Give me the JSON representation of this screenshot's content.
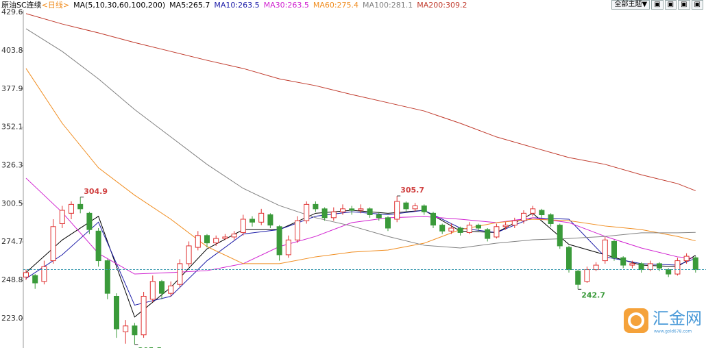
{
  "chart_data": {
    "type": "candlestick",
    "title": "原油SC连续",
    "period": "<日线>",
    "ma_params": "MA(5,10,30,60,100,200)",
    "ylim": [
      203.1,
      437.9
    ],
    "yticks": [
      {
        "value": 223,
        "label": "223.0"
      },
      248.8,
      274.7,
      300.5,
      326.3,
      352.1,
      377.9,
      403.8,
      429.6
    ],
    "up_color": "#e03030",
    "down_color": "#3a9a3a",
    "open": [
      251,
      252,
      248,
      262,
      287,
      294,
      300,
      294,
      282,
      262,
      238,
      214,
      218,
      212,
      236,
      248,
      240,
      246,
      260,
      271,
      279,
      274,
      277,
      278,
      281,
      290,
      288,
      293,
      285,
      266,
      276,
      289,
      300,
      297,
      291,
      295,
      297,
      296,
      297,
      293,
      291,
      290,
      301,
      297,
      299,
      294,
      286,
      282,
      284,
      281,
      286,
      283,
      278,
      285,
      286,
      289,
      294,
      296,
      293,
      286,
      271,
      255,
      248,
      256,
      262,
      275,
      264,
      259,
      260,
      256,
      260,
      256,
      253,
      262,
      264
    ],
    "high": [
      256,
      253,
      262,
      290,
      299,
      302,
      304.9,
      295,
      284,
      263,
      240,
      222,
      220,
      241,
      252,
      249,
      248,
      263,
      275,
      282,
      280,
      279,
      280,
      282,
      293,
      292,
      297,
      294,
      286,
      279,
      292,
      302,
      302,
      298,
      298,
      300,
      299,
      300,
      298,
      295,
      292,
      305.7,
      302,
      301,
      300,
      295,
      287,
      287,
      285,
      288,
      287,
      284,
      287,
      288,
      291,
      296,
      299,
      297,
      294,
      287,
      272,
      256,
      258,
      261,
      278,
      276,
      265,
      262,
      261,
      262,
      261,
      257,
      264,
      267,
      265
    ],
    "low": [
      249,
      243,
      246,
      260,
      284,
      290,
      294,
      280,
      258,
      236,
      210,
      206,
      205.5,
      210,
      234,
      236,
      238,
      244,
      258,
      269,
      271,
      272,
      276,
      276,
      279,
      285,
      286,
      284,
      262,
      264,
      274,
      287,
      295,
      289,
      289,
      293,
      293,
      294,
      291,
      289,
      282,
      288,
      295,
      295,
      293,
      284,
      280,
      280,
      279,
      280,
      282,
      275,
      277,
      283,
      284,
      287,
      292,
      291,
      285,
      270,
      254,
      242.7,
      247,
      255,
      260,
      262,
      257,
      257,
      254,
      255,
      255,
      251,
      252,
      260,
      254
    ],
    "close": [
      254,
      247,
      258,
      285,
      296,
      300,
      297,
      283,
      262,
      240,
      216,
      218,
      212,
      238,
      248,
      240,
      245,
      260,
      272,
      279,
      274,
      277,
      278,
      280,
      290,
      288,
      294,
      286,
      266,
      276,
      289,
      300,
      297,
      291,
      295,
      297,
      296,
      297,
      293,
      291,
      284,
      302,
      297,
      299,
      295,
      286,
      282,
      284,
      281,
      286,
      284,
      277,
      285,
      286,
      289,
      294,
      297,
      293,
      287,
      272,
      256,
      246,
      256,
      259,
      276,
      264,
      259,
      260,
      256,
      260,
      257,
      253,
      262,
      265,
      256
    ],
    "series": [
      {
        "name": "MA5:265.7",
        "color": "#000000",
        "x": [
          0,
          4,
          8,
          12,
          16,
          20,
          24,
          28,
          32,
          36,
          40,
          44,
          48,
          52,
          56,
          60,
          64,
          68,
          72,
          74
        ],
        "values": [
          254,
          276,
          292,
          224,
          244,
          270,
          283,
          283,
          294,
          296,
          294,
          296,
          282,
          281,
          294,
          273,
          266,
          259,
          258,
          265.7
        ]
      },
      {
        "name": "MA10:263.5",
        "color": "#1c1ca8",
        "x": [
          0,
          4,
          8,
          12,
          16,
          20,
          24,
          28,
          32,
          36,
          40,
          44,
          48,
          52,
          56,
          60,
          64,
          68,
          72,
          74
        ],
        "values": [
          250,
          266,
          288,
          232,
          238,
          262,
          280,
          283,
          292,
          295,
          293,
          296,
          284,
          281,
          291,
          290,
          264.6,
          260,
          259,
          263.5
        ]
      },
      {
        "name": "MA30:263.5",
        "color": "#d020d0",
        "x": [
          0,
          4,
          8,
          12,
          16,
          20,
          24,
          28,
          32,
          36,
          40,
          44,
          48,
          52,
          56,
          60,
          64,
          68,
          72,
          74
        ],
        "values": [
          317.7,
          294.6,
          266.9,
          253,
          254,
          255.3,
          260,
          271.5,
          278.4,
          287.7,
          291,
          291.8,
          290,
          287.7,
          291,
          287.7,
          278.4,
          270.6,
          264.6,
          263.5
        ]
      },
      {
        "name": "MA60:275.4",
        "color": "#f08c1e",
        "x": [
          0,
          4,
          8,
          12,
          16,
          20,
          24,
          28,
          32,
          36,
          40,
          44,
          48,
          52,
          56,
          60,
          64,
          68,
          72,
          74
        ],
        "values": [
          391.7,
          354.7,
          324.7,
          306.2,
          290,
          271.5,
          260,
          260,
          264.6,
          267.8,
          269.2,
          273.8,
          283,
          287.7,
          290,
          289,
          285.4,
          283,
          278.4,
          275.4
        ]
      },
      {
        "name": "MA100:281.1",
        "color": "#808080",
        "x": [
          0,
          4,
          8,
          12,
          16,
          20,
          24,
          28,
          32,
          36,
          40,
          44,
          48,
          52,
          56,
          60,
          64,
          68,
          72,
          74
        ],
        "values": [
          418.5,
          403.2,
          384.7,
          364,
          345.5,
          327,
          310.8,
          299.2,
          291,
          285.4,
          278.4,
          272.4,
          270.6,
          273.8,
          276.1,
          277,
          278.4,
          280.8,
          280.8,
          281.1
        ]
      },
      {
        "name": "MA200:309.2",
        "color": "#c0392b",
        "x": [
          0,
          4,
          8,
          12,
          16,
          20,
          24,
          28,
          32,
          36,
          40,
          44,
          48,
          52,
          56,
          60,
          64,
          68,
          72,
          74
        ],
        "values": [
          428.7,
          421.7,
          415.7,
          409.2,
          403.2,
          397.2,
          391.7,
          384.7,
          380.1,
          374.1,
          368.6,
          363,
          354.7,
          345.5,
          338.5,
          331.6,
          327,
          320,
          314,
          309.2
        ]
      }
    ]
  },
  "ui": {
    "theme_button": "全部主题▼",
    "watermark": "汇金网",
    "watermark_url": "www.gold678.com"
  }
}
